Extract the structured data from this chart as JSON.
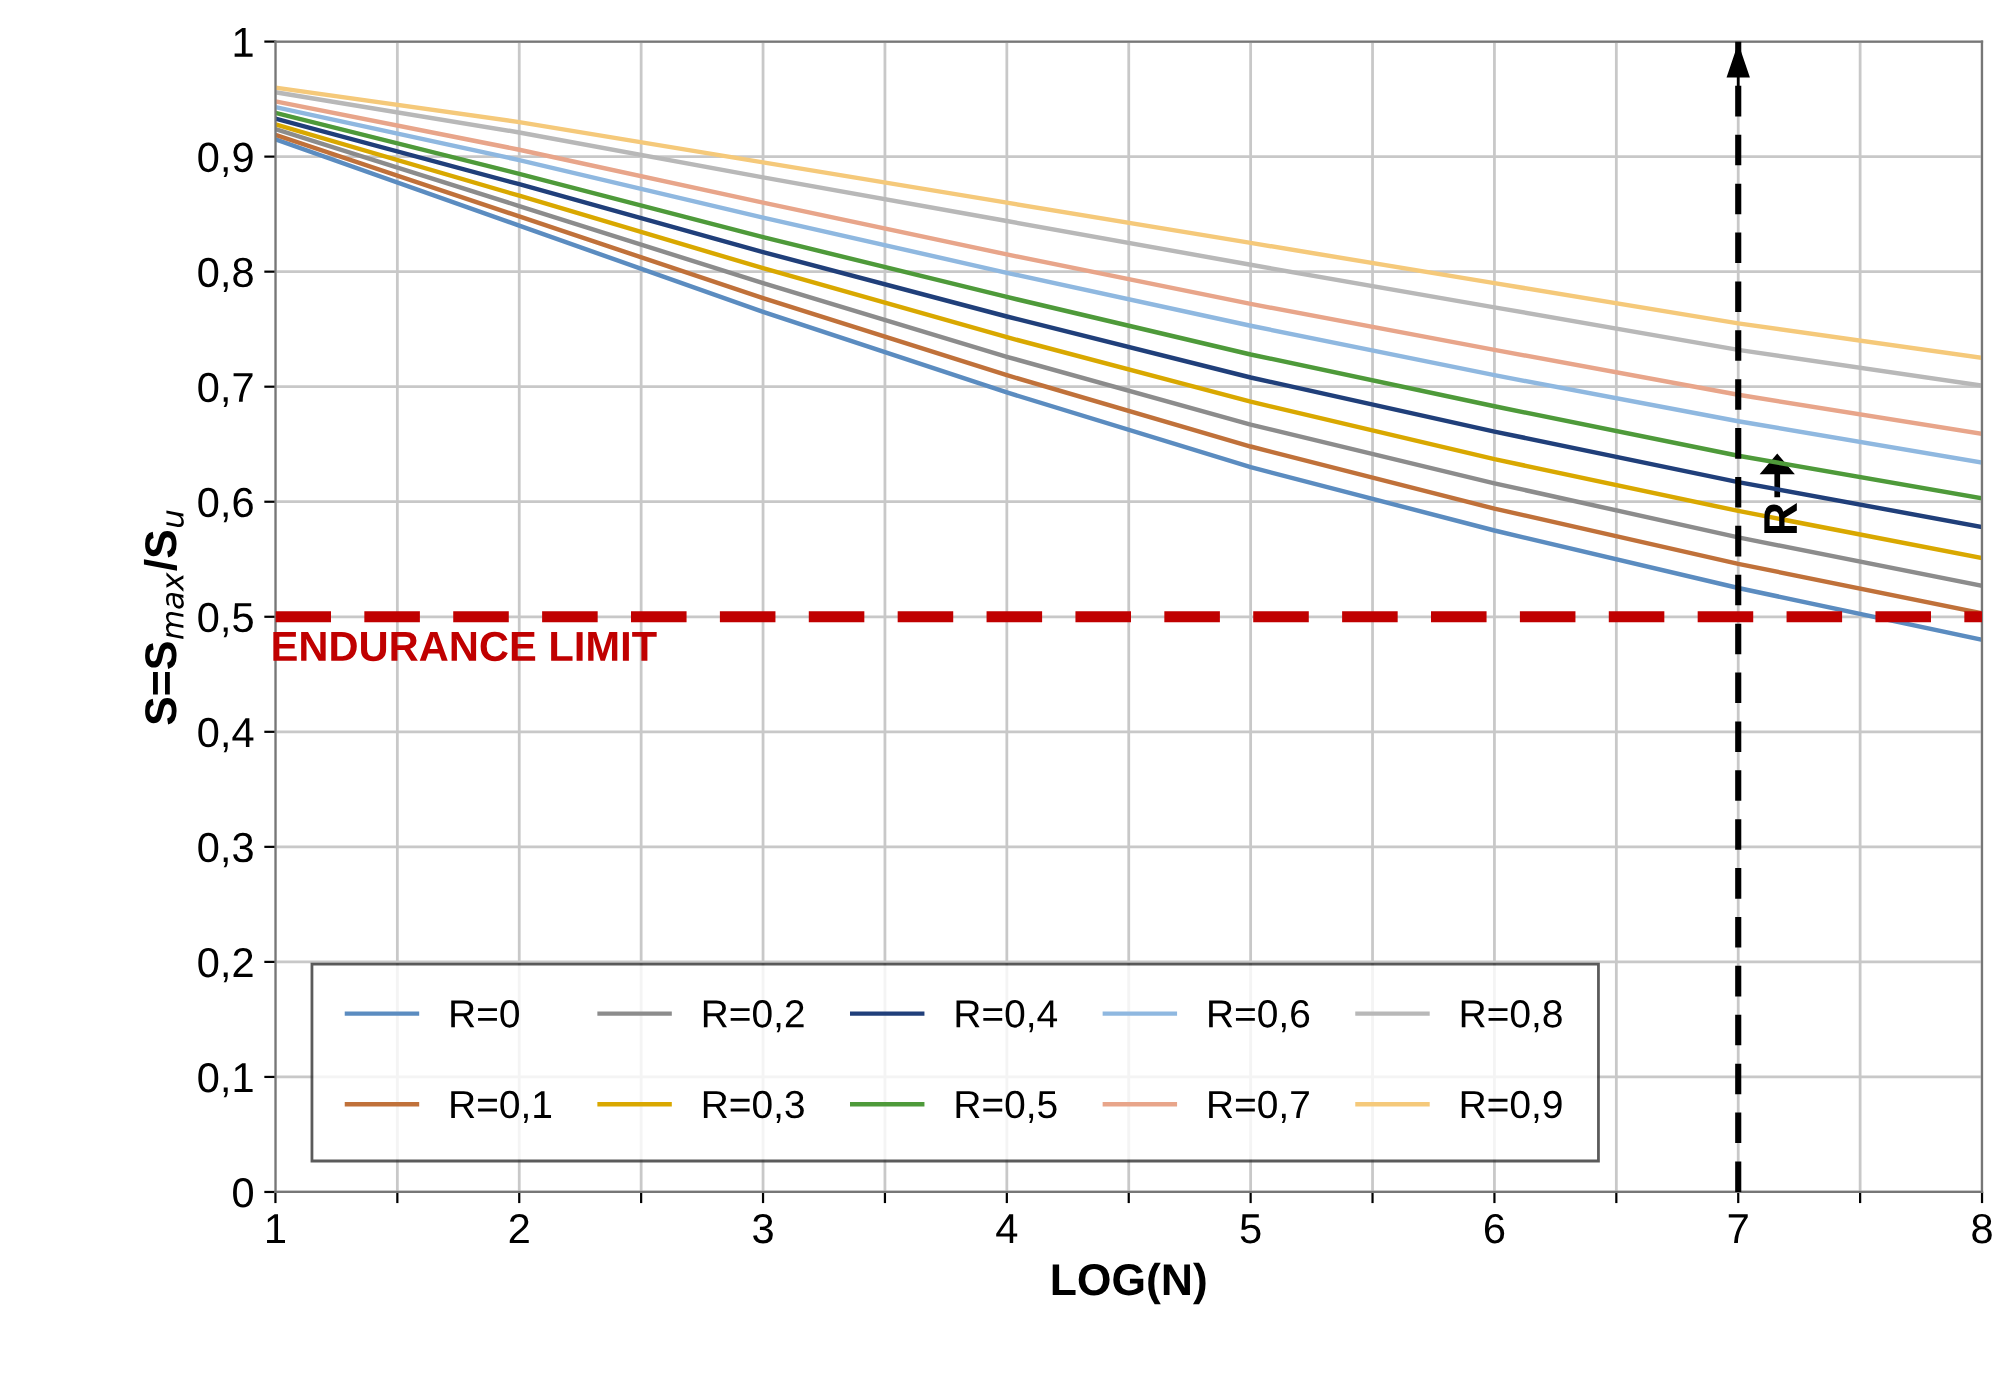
{
  "chart_data": {
    "type": "line",
    "xlabel": "LOG(N)",
    "ylabel": "S=S$_{max}$/S$_{u}$",
    "x": [
      1,
      2,
      3,
      4,
      5,
      6,
      7,
      8
    ],
    "series": [
      {
        "name": "R=0",
        "color": "#5b8cc0",
        "values": [
          0.915,
          0.84,
          0.765,
          0.695,
          0.63,
          0.575,
          0.525,
          0.48
        ]
      },
      {
        "name": "R=0,1",
        "color": "#c0713a",
        "values": [
          0.919,
          0.848,
          0.777,
          0.71,
          0.648,
          0.594,
          0.546,
          0.503
        ]
      },
      {
        "name": "R=0,2",
        "color": "#8c8c8c",
        "values": [
          0.924,
          0.857,
          0.79,
          0.726,
          0.667,
          0.616,
          0.569,
          0.527
        ]
      },
      {
        "name": "R=0,3",
        "color": "#d9a800",
        "values": [
          0.928,
          0.866,
          0.803,
          0.743,
          0.687,
          0.637,
          0.592,
          0.551
        ]
      },
      {
        "name": "R=0,4",
        "color": "#203f7a",
        "values": [
          0.933,
          0.876,
          0.817,
          0.761,
          0.708,
          0.661,
          0.617,
          0.578
        ]
      },
      {
        "name": "R=0,5",
        "color": "#4e9a3a",
        "values": [
          0.938,
          0.885,
          0.83,
          0.778,
          0.728,
          0.683,
          0.64,
          0.603
        ]
      },
      {
        "name": "R=0,6",
        "color": "#8fb8e0",
        "values": [
          0.943,
          0.897,
          0.847,
          0.799,
          0.753,
          0.71,
          0.67,
          0.634
        ]
      },
      {
        "name": "R=0,7",
        "color": "#e8a58a",
        "values": [
          0.948,
          0.906,
          0.86,
          0.815,
          0.772,
          0.732,
          0.693,
          0.659
        ]
      },
      {
        "name": "R=0,8",
        "color": "#b8b8b8",
        "values": [
          0.956,
          0.921,
          0.882,
          0.844,
          0.806,
          0.769,
          0.732,
          0.701
        ]
      },
      {
        "name": "R=0,9",
        "color": "#f5c97a",
        "values": [
          0.96,
          0.93,
          0.895,
          0.86,
          0.825,
          0.79,
          0.755,
          0.725
        ]
      }
    ],
    "xlim": [
      1,
      8
    ],
    "xticks": [
      1,
      {
        "value": 1.5,
        "label": null
      },
      2,
      {
        "value": 2.5,
        "label": null
      },
      3,
      {
        "value": 3.5,
        "label": null
      },
      4,
      {
        "value": 4.5,
        "label": null
      },
      5,
      {
        "value": 5.5,
        "label": null
      },
      6,
      {
        "value": 6.5,
        "label": null
      },
      7,
      {
        "value": 7.5,
        "label": null
      },
      8
    ],
    "ylim": [
      0,
      1
    ],
    "yticks": [
      0,
      {
        "value": 0.1,
        "label": "0,1"
      },
      {
        "value": 0.2,
        "label": "0,2"
      },
      {
        "value": 0.3,
        "label": "0,3"
      },
      {
        "value": 0.4,
        "label": "0,4"
      },
      {
        "value": 0.5,
        "label": "0,5"
      },
      {
        "value": 0.6,
        "label": "0,6"
      },
      {
        "value": 0.7,
        "label": "0,7"
      },
      {
        "value": 0.8,
        "label": "0,8"
      },
      {
        "value": 0.9,
        "label": "0,9"
      },
      1
    ],
    "grid": true,
    "legend": "bottom left",
    "ref_lines": [
      {
        "axis": "y",
        "value": 0.5,
        "label": "ENDURANCE LIMIT",
        "color": "#c00000",
        "line_style": "dashed"
      },
      {
        "axis": "x",
        "value": 7,
        "color": "#000000",
        "line_style": "dashed"
      }
    ],
    "annotations": [
      "R"
    ]
  }
}
